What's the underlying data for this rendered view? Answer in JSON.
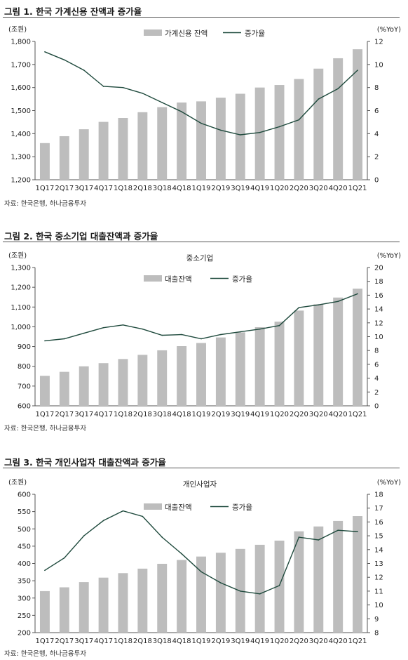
{
  "chart_data": [
    {
      "type": "bar+line",
      "title": "그림 1. 한국 가계신용 잔액과 증가율",
      "subtitle": "",
      "y_left_unit": "(조원)",
      "y_right_unit": "(%YoY)",
      "categories": [
        "1Q17",
        "2Q17",
        "3Q17",
        "4Q17",
        "1Q18",
        "2Q18",
        "3Q18",
        "4Q18",
        "1Q19",
        "2Q19",
        "3Q19",
        "4Q19",
        "1Q20",
        "2Q20",
        "3Q20",
        "4Q20",
        "1Q21"
      ],
      "series": [
        {
          "name": "가계신용 잔액",
          "type": "bar",
          "axis": "left",
          "color": "#bdbdbd",
          "values": [
            1359,
            1389,
            1419,
            1451,
            1468,
            1493,
            1515,
            1535,
            1540,
            1556,
            1573,
            1600,
            1611,
            1637,
            1682,
            1727,
            1766
          ]
        },
        {
          "name": "증가율",
          "type": "line",
          "axis": "right",
          "color": "#1f4a3d",
          "values": [
            11.1,
            10.4,
            9.5,
            8.1,
            8.0,
            7.5,
            6.7,
            5.9,
            4.9,
            4.3,
            3.9,
            4.1,
            4.6,
            5.2,
            7.0,
            7.9,
            9.5
          ]
        }
      ],
      "y_left_ticks": [
        "1,200",
        "1,300",
        "1,400",
        "1,500",
        "1,600",
        "1,700",
        "1,800"
      ],
      "y_left_range": [
        1200,
        1800
      ],
      "y_right_ticks": [
        "0",
        "2",
        "4",
        "6",
        "8",
        "10",
        "12"
      ],
      "y_right_range": [
        0,
        12
      ],
      "legend": "top-center",
      "source": "자료: 한국은행, 하나금융투자"
    },
    {
      "type": "bar+line",
      "title": "그림 2. 한국 중소기업 대출잔액과 증가율",
      "subtitle": "중소기업",
      "y_left_unit": "(조원)",
      "y_right_unit": "(%YoY)",
      "categories": [
        "1Q17",
        "2Q17",
        "3Q17",
        "4Q17",
        "1Q18",
        "2Q18",
        "3Q18",
        "4Q18",
        "1Q19",
        "2Q19",
        "3Q19",
        "4Q19",
        "1Q20",
        "2Q20",
        "3Q20",
        "4Q20",
        "1Q21"
      ],
      "series": [
        {
          "name": "대출잔액",
          "type": "bar",
          "axis": "left",
          "color": "#bdbdbd",
          "values": [
            752,
            772,
            800,
            816,
            837,
            858,
            881,
            902,
            918,
            946,
            972,
            998,
            1026,
            1082,
            1114,
            1148,
            1193
          ]
        },
        {
          "name": "증가율",
          "type": "line",
          "axis": "right",
          "color": "#1f4a3d",
          "values": [
            9.4,
            9.7,
            10.5,
            11.3,
            11.7,
            11.1,
            10.2,
            10.3,
            9.7,
            10.3,
            10.7,
            11.1,
            11.6,
            14.2,
            14.6,
            15.1,
            16.2
          ]
        }
      ],
      "y_left_ticks": [
        "600",
        "700",
        "800",
        "900",
        "1,000",
        "1,100",
        "1,200",
        "1,300"
      ],
      "y_left_range": [
        600,
        1300
      ],
      "y_right_ticks": [
        "0",
        "2",
        "4",
        "6",
        "8",
        "10",
        "12",
        "14",
        "16",
        "18",
        "20"
      ],
      "y_right_range": [
        0,
        20
      ],
      "legend": "top-center",
      "source": "자료: 한국은행, 하나금융투자"
    },
    {
      "type": "bar+line",
      "title": "그림 3. 한국 개인사업자 대출잔액과 증가율",
      "subtitle": "개인사업자",
      "y_left_unit": "(조원)",
      "y_right_unit": "(%YoY)",
      "categories": [
        "1Q17",
        "2Q17",
        "3Q17",
        "4Q17",
        "1Q18",
        "2Q18",
        "3Q18",
        "4Q18",
        "1Q19",
        "2Q19",
        "3Q19",
        "4Q19",
        "1Q20",
        "2Q20",
        "3Q20",
        "4Q20",
        "1Q21"
      ],
      "series": [
        {
          "name": "대출잔액",
          "type": "bar",
          "axis": "left",
          "color": "#bdbdbd",
          "values": [
            320,
            331,
            346,
            359,
            372,
            385,
            399,
            410,
            420,
            431,
            442,
            454,
            466,
            493,
            507,
            523,
            537
          ]
        },
        {
          "name": "증가율",
          "type": "line",
          "axis": "right",
          "color": "#1f4a3d",
          "values": [
            12.5,
            13.4,
            15.0,
            16.1,
            16.8,
            16.4,
            14.9,
            13.7,
            12.4,
            11.6,
            11.0,
            10.8,
            11.4,
            14.9,
            14.7,
            15.4,
            15.3
          ]
        }
      ],
      "y_left_ticks": [
        "200",
        "250",
        "300",
        "350",
        "400",
        "450",
        "500",
        "550",
        "600"
      ],
      "y_left_range": [
        200,
        600
      ],
      "y_right_ticks": [
        "8",
        "9",
        "10",
        "11",
        "12",
        "13",
        "14",
        "15",
        "16",
        "17",
        "18"
      ],
      "y_right_range": [
        8,
        18
      ],
      "legend": "top-center",
      "source": "자료: 한국은행, 하나금융투자"
    }
  ]
}
